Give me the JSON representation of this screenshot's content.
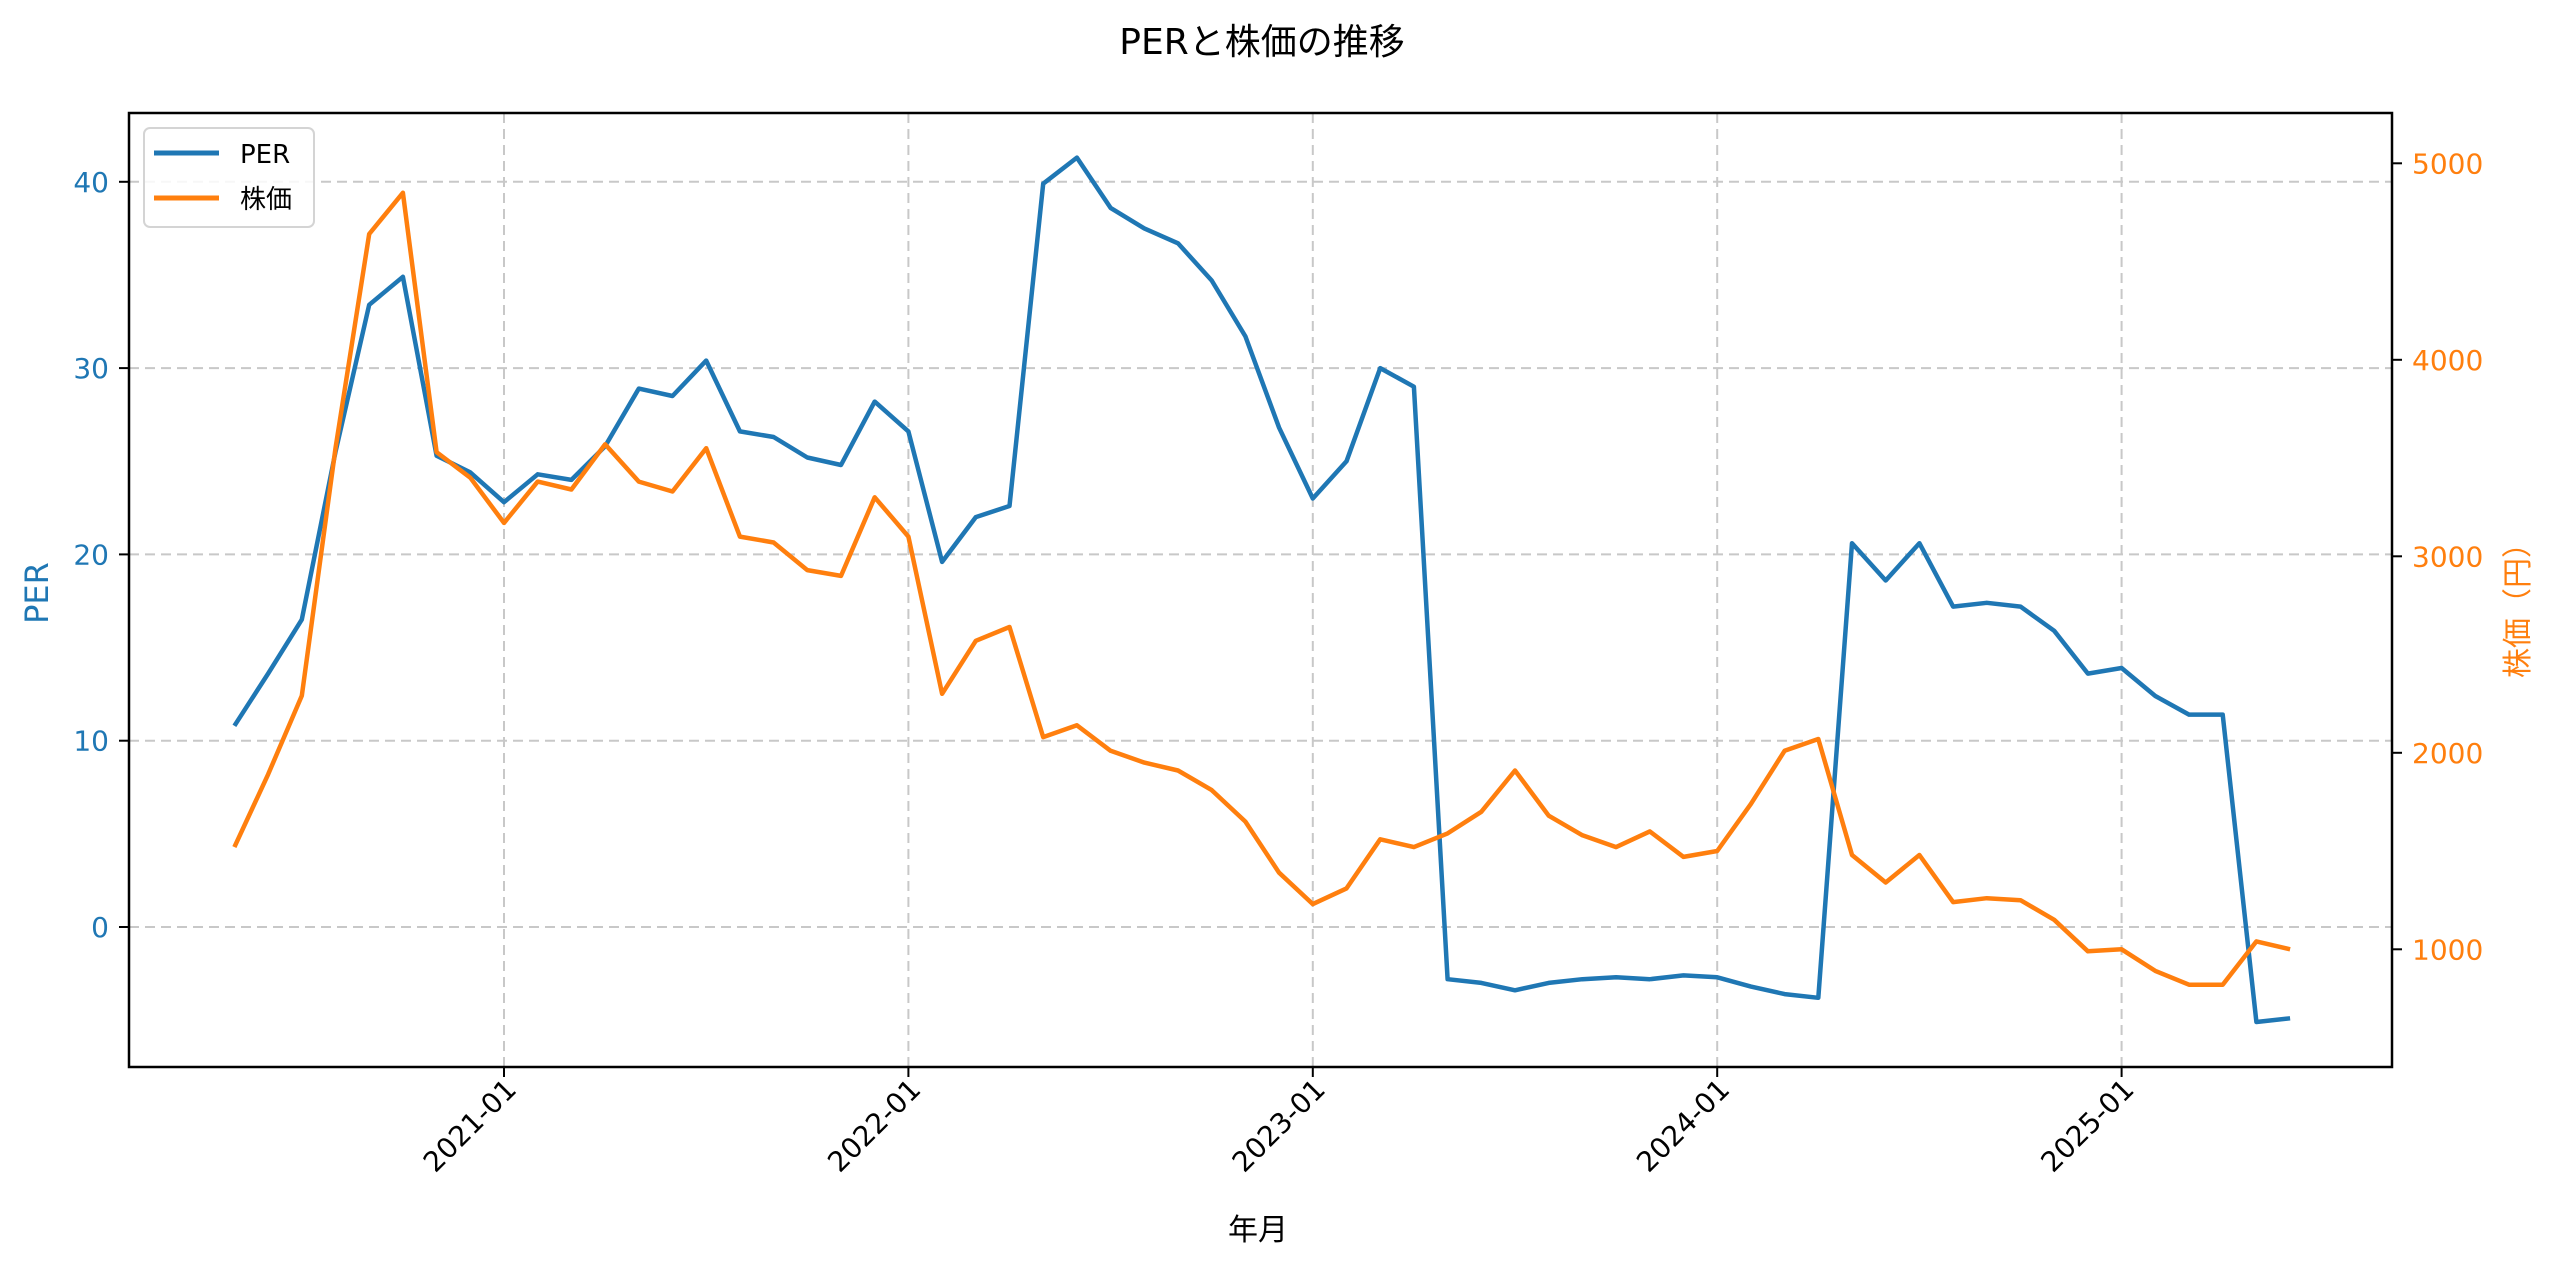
{
  "chart_data": {
    "type": "line",
    "title": "PERと株価の推移",
    "xlabel": "年月",
    "ylabel": "PER",
    "ylabel_right": "株価（円）",
    "x": [
      "2020-05",
      "2020-06",
      "2020-07",
      "2020-08",
      "2020-09",
      "2020-10",
      "2020-11",
      "2020-12",
      "2021-01",
      "2021-02",
      "2021-03",
      "2021-04",
      "2021-05",
      "2021-06",
      "2021-07",
      "2021-08",
      "2021-09",
      "2021-10",
      "2021-11",
      "2021-12",
      "2022-01",
      "2022-02",
      "2022-03",
      "2022-04",
      "2022-05",
      "2022-06",
      "2022-07",
      "2022-08",
      "2022-09",
      "2022-10",
      "2022-11",
      "2022-12",
      "2023-01",
      "2023-02",
      "2023-03",
      "2023-04",
      "2023-05",
      "2023-06",
      "2023-07",
      "2023-08",
      "2023-09",
      "2023-10",
      "2023-11",
      "2023-12",
      "2024-01",
      "2024-02",
      "2024-03",
      "2024-04",
      "2024-05",
      "2024-06",
      "2024-07",
      "2024-08",
      "2024-09",
      "2024-10",
      "2024-11",
      "2024-12",
      "2025-01",
      "2025-02",
      "2025-03",
      "2025-04",
      "2025-05",
      "2025-06"
    ],
    "x_ticks": [
      "2021-01",
      "2022-01",
      "2023-01",
      "2024-01",
      "2025-01"
    ],
    "x_tick_rotation": 45,
    "series": [
      {
        "name": "PER",
        "axis": "left",
        "color": "#1f77b4",
        "values": [
          10.8,
          13.6,
          16.5,
          25.5,
          33.4,
          34.9,
          25.3,
          24.4,
          22.8,
          24.3,
          24.0,
          25.8,
          28.9,
          28.5,
          30.4,
          26.6,
          26.3,
          25.2,
          24.8,
          28.2,
          26.6,
          19.6,
          22.0,
          22.6,
          39.9,
          41.3,
          38.6,
          37.5,
          36.7,
          34.7,
          31.7,
          26.8,
          23.0,
          25.0,
          30.0,
          29.0,
          -2.8,
          -3.0,
          -3.4,
          -3.0,
          -2.8,
          -2.7,
          -2.8,
          -2.6,
          -2.7,
          -3.2,
          -3.6,
          -3.8,
          20.6,
          18.6,
          20.6,
          17.2,
          17.4,
          17.2,
          15.9,
          13.6,
          13.9,
          12.4,
          11.4,
          11.4,
          -5.1,
          -4.9
        ]
      },
      {
        "name": "株価",
        "axis": "right",
        "color": "#ff7f0e",
        "values": [
          1520,
          1890,
          2290,
          3550,
          4640,
          4850,
          3530,
          3400,
          3170,
          3380,
          3340,
          3570,
          3380,
          3330,
          3550,
          3100,
          3070,
          2930,
          2900,
          3300,
          3100,
          2300,
          2570,
          2640,
          2080,
          2140,
          2010,
          1950,
          1910,
          1810,
          1650,
          1390,
          1230,
          1310,
          1560,
          1520,
          1590,
          1700,
          1910,
          1680,
          1580,
          1520,
          1600,
          1470,
          1500,
          1740,
          2010,
          2070,
          1480,
          1340,
          1480,
          1240,
          1260,
          1250,
          1150,
          990,
          1000,
          890,
          820,
          820,
          1040,
          1000
        ]
      }
    ],
    "ylim_left": [
      -7.5,
      43.7
    ],
    "yticks_left": [
      0,
      10,
      20,
      30,
      40
    ],
    "ylim_right": [
      405,
      5260
    ],
    "yticks_right": [
      1000,
      2000,
      3000,
      4000,
      5000
    ],
    "grid": true,
    "grid_style": "dashed",
    "legend_position": "upper left",
    "legend": [
      "PER",
      "株価"
    ]
  },
  "colors": {
    "per": "#1f77b4",
    "price": "#ff7f0e",
    "grid": "#c8c8c8",
    "axis": "#000000"
  }
}
